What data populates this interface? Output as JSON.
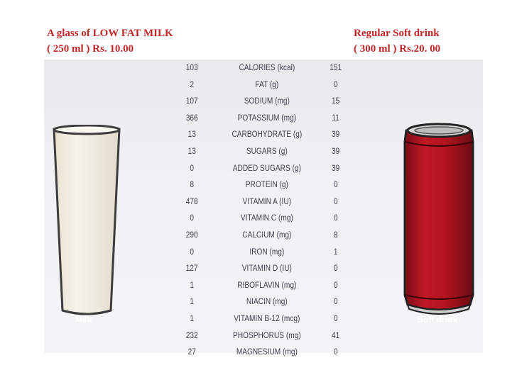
{
  "milk": {
    "title": "A glass of LOW FAT MILK",
    "volume_price": "( 250 ml ) Rs. 10.00",
    "caption": "Milk"
  },
  "soda": {
    "title": "Regular Soft drink",
    "volume_price": "( 300 ml ) Rs.20. 00",
    "caption": "Soft drink"
  },
  "colors": {
    "header_text": "#c0282a",
    "can_red": "#b3141f",
    "milk_white": "#f4f0e6"
  },
  "rows": [
    {
      "milk": "103",
      "nutrient": "CALORIES (kcal)",
      "soda": "151"
    },
    {
      "milk": "2",
      "nutrient": "FAT (g)",
      "soda": "0"
    },
    {
      "milk": "107",
      "nutrient": "SODIUM (mg)",
      "soda": "15"
    },
    {
      "milk": "366",
      "nutrient": "POTASSIUM (mg)",
      "soda": "11"
    },
    {
      "milk": "13",
      "nutrient": "CARBOHYDRATE (g)",
      "soda": "39"
    },
    {
      "milk": "13",
      "nutrient": "SUGARS (g)",
      "soda": "39"
    },
    {
      "milk": "0",
      "nutrient": "ADDED SUGARS (g)",
      "soda": "39"
    },
    {
      "milk": "8",
      "nutrient": "PROTEIN (g)",
      "soda": "0"
    },
    {
      "milk": "478",
      "nutrient": "VITAMIN A (IU)",
      "soda": "0"
    },
    {
      "milk": "0",
      "nutrient": "VITAMIN C (mg)",
      "soda": "0"
    },
    {
      "milk": "290",
      "nutrient": "CALCIUM (mg)",
      "soda": "8"
    },
    {
      "milk": "0",
      "nutrient": "IRON (mg)",
      "soda": "1"
    },
    {
      "milk": "127",
      "nutrient": "VITAMIN D (IU)",
      "soda": "0"
    },
    {
      "milk": "1",
      "nutrient": "RIBOFLAVIN (mg)",
      "soda": "0"
    },
    {
      "milk": "1",
      "nutrient": "NIACIN (mg)",
      "soda": "0"
    },
    {
      "milk": "1",
      "nutrient": "VITAMIN B-12 (mcg)",
      "soda": "0"
    },
    {
      "milk": "232",
      "nutrient": "PHOSPHORUS (mg)",
      "soda": "41"
    },
    {
      "milk": "27",
      "nutrient": "MAGNESIUM (mg)",
      "soda": "0"
    }
  ]
}
